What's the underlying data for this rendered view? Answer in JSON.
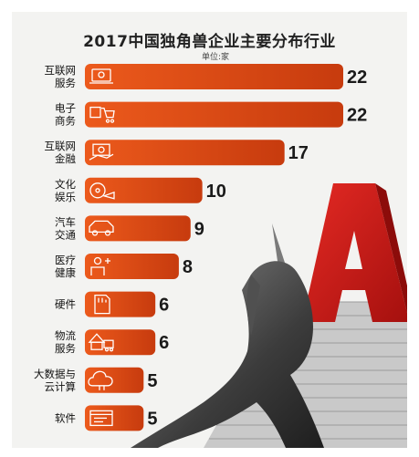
{
  "chart_data": {
    "type": "bar",
    "orientation": "horizontal",
    "title": "2017中国独角兽企业主要分布行业",
    "unit": "单位:家",
    "categories": [
      [
        "互联网",
        "服务"
      ],
      [
        "电子",
        "商务"
      ],
      [
        "互联网",
        "金融"
      ],
      [
        "文化",
        "娱乐"
      ],
      [
        "汽车",
        "交通"
      ],
      [
        "医疗",
        "健康"
      ],
      [
        "硬件"
      ],
      [
        "物流",
        "服务"
      ],
      [
        "大数据与",
        "云计算"
      ],
      [
        "软件"
      ]
    ],
    "icons": [
      "laptop-icon",
      "shopping-cart-icon",
      "finance-hand-icon",
      "film-reel-icon",
      "car-icon",
      "doctor-icon",
      "sd-card-icon",
      "delivery-truck-icon",
      "cloud-icon",
      "software-window-icon"
    ],
    "values": [
      22,
      22,
      17,
      10,
      9,
      8,
      6,
      6,
      5,
      5
    ],
    "xlim": [
      0,
      22
    ],
    "grid": false,
    "legend": "none",
    "colors": {
      "bar_start": "#e8551b",
      "bar_end": "#c83c10",
      "text": "#1a1a1a"
    }
  }
}
